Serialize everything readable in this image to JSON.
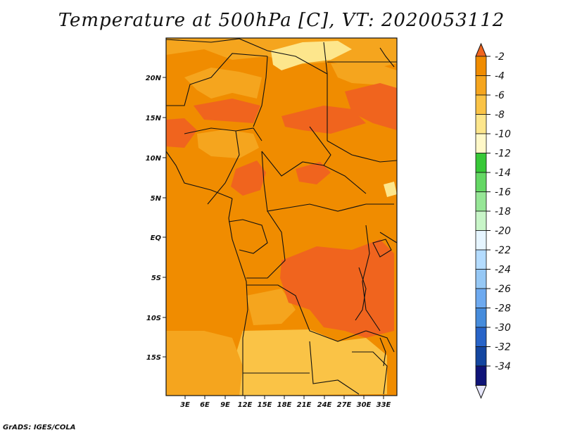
{
  "title": "Temperature at 500hPa [C], VT: 2020053112",
  "footer": "GrADS: IGES/COLA",
  "lat_ticks": [
    "20N",
    "15N",
    "10N",
    "5N",
    "EQ",
    "5S",
    "10S",
    "15S"
  ],
  "lon_ticks": [
    "3E",
    "6E",
    "9E",
    "12E",
    "15E",
    "18E",
    "21E",
    "24E",
    "27E",
    "30E",
    "33E"
  ],
  "colorbar": {
    "labels": [
      "-2",
      "-4",
      "-6",
      "-8",
      "-10",
      "-12",
      "-14",
      "-16",
      "-18",
      "-20",
      "-22",
      "-24",
      "-26",
      "-28",
      "-30",
      "-32",
      "-34"
    ],
    "colors": [
      "#f0641e",
      "#f08c00",
      "#f5a51e",
      "#fac346",
      "#fde68c",
      "#fff8c8",
      "#37c837",
      "#64d764",
      "#96e696",
      "#c8f5c8",
      "#e6f5ff",
      "#b4dcff",
      "#96c8f5",
      "#6eaaf0",
      "#468cdc",
      "#2864c8",
      "#1446a0",
      "#0f1478",
      "#e6e6fa"
    ]
  },
  "legend_entries": [
    {
      "value": "-4 to -6",
      "color": "#f08c00"
    },
    {
      "value": "-6 to -8",
      "color": "#f5a51e"
    },
    {
      "value": "-2 to -4",
      "color": "#f0641e"
    },
    {
      "value": "-8 to -10",
      "color": "#fac346"
    }
  ]
}
